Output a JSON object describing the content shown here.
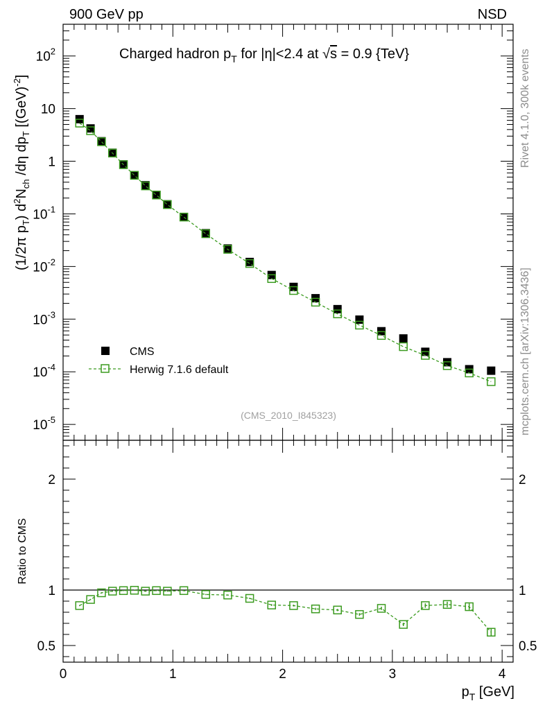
{
  "header": {
    "left": "900 GeV pp",
    "right": "NSD"
  },
  "side_labels": {
    "rivet": "Rivet 4.1.0,  300k events",
    "mcplots": "mcplots.cern.ch [arXiv:1306.3436]"
  },
  "chart_data": [
    {
      "type": "scatter",
      "title": "Charged hadron p_T for |η|<2.4 at √s = 0.9 {TeV}",
      "title_parts": [
        "Charged hadron p",
        "T",
        " for |η|<2.4 at ",
        "√",
        "s",
        " = 0.9 {TeV}"
      ],
      "ylabel": "(1/2π p_T) d²N_ch/dη dp_T [(GeV)⁻²]",
      "ylabel_parts": [
        "(1/2π p",
        "T",
        ") d",
        "2",
        "N",
        "ch",
        " /dη  dp",
        "T",
        " [(GeV)",
        "-2",
        "]"
      ],
      "yscale": "log",
      "ylim": [
        5e-06,
        400
      ],
      "xlim": [
        0,
        4.1
      ],
      "ytick_labels": [
        {
          "base": "10",
          "exp": "-5",
          "value": 1e-05
        },
        {
          "base": "10",
          "exp": "-4",
          "value": 0.0001
        },
        {
          "base": "10",
          "exp": "-3",
          "value": 0.001
        },
        {
          "base": "10",
          "exp": "-2",
          "value": 0.01
        },
        {
          "base": "10",
          "exp": "-1",
          "value": 0.1
        },
        {
          "base": "1",
          "exp": "",
          "value": 1
        },
        {
          "base": "10",
          "exp": "",
          "value": 10
        },
        {
          "base": "10",
          "exp": "2",
          "value": 100
        }
      ],
      "watermark": "(CMS_2010_I845323)",
      "legend": {
        "position": "bottom-left",
        "entries": [
          "CMS",
          "Herwig 7.1.6 default"
        ]
      },
      "x": [
        0.15,
        0.25,
        0.35,
        0.45,
        0.55,
        0.65,
        0.75,
        0.85,
        0.95,
        1.1,
        1.3,
        1.5,
        1.7,
        1.9,
        2.1,
        2.3,
        2.5,
        2.7,
        2.9,
        3.1,
        3.3,
        3.5,
        3.7,
        3.9
      ],
      "series": [
        {
          "name": "CMS",
          "marker": "filled-square",
          "color": "#000000",
          "values": [
            6.3,
            4.2,
            2.4,
            1.45,
            0.87,
            0.54,
            0.35,
            0.23,
            0.152,
            0.087,
            0.043,
            0.022,
            0.0122,
            0.0069,
            0.0041,
            0.0025,
            0.00155,
            0.00098,
            0.00059,
            0.00043,
            0.00024,
            0.000152,
            0.000112,
            0.000105
          ]
        },
        {
          "name": "Herwig 7.1.6 default",
          "marker": "open-square",
          "line": "dashed",
          "color": "#3a9a1e",
          "values": [
            5.3,
            3.8,
            2.35,
            1.43,
            0.86,
            0.54,
            0.34,
            0.228,
            0.15,
            0.087,
            0.042,
            0.0212,
            0.0114,
            0.0059,
            0.0035,
            0.0021,
            0.00126,
            0.00077,
            0.00049,
            0.0003,
            0.000205,
            0.000131,
            9.5e-05,
            6.5e-05
          ]
        }
      ]
    },
    {
      "type": "scatter",
      "ylabel": "Ratio to CMS",
      "xlabel_parts": [
        "p",
        "T",
        " [GeV]"
      ],
      "xlabel": "p_T [GeV]",
      "ylim": [
        0.35,
        2.35
      ],
      "xlim": [
        0,
        4.1
      ],
      "xtick_labels": [
        "0",
        "1",
        "2",
        "3",
        "4"
      ],
      "ytick_labels": [
        "0.5",
        "1",
        "2"
      ],
      "reference_line": 1,
      "x": [
        0.15,
        0.25,
        0.35,
        0.45,
        0.55,
        0.65,
        0.75,
        0.85,
        0.95,
        1.1,
        1.3,
        1.5,
        1.7,
        1.9,
        2.1,
        2.3,
        2.5,
        2.7,
        2.9,
        3.1,
        3.3,
        3.5,
        3.7,
        3.9
      ],
      "series": [
        {
          "name": "Herwig 7.1.6 default",
          "marker": "open-square",
          "line": "dashed",
          "color": "#3a9a1e",
          "values": [
            0.86,
            0.915,
            0.975,
            0.99,
            0.995,
            0.998,
            0.99,
            0.995,
            0.99,
            0.995,
            0.96,
            0.955,
            0.925,
            0.865,
            0.86,
            0.83,
            0.82,
            0.78,
            0.835,
            0.69,
            0.86,
            0.87,
            0.85,
            0.62
          ],
          "errors": [
            0.005,
            0.005,
            0.005,
            0.005,
            0.005,
            0.005,
            0.005,
            0.005,
            0.005,
            0.005,
            0.005,
            0.005,
            0.006,
            0.008,
            0.008,
            0.01,
            0.01,
            0.012,
            0.015,
            0.015,
            0.02,
            0.025,
            0.03,
            0.035
          ]
        }
      ]
    }
  ]
}
